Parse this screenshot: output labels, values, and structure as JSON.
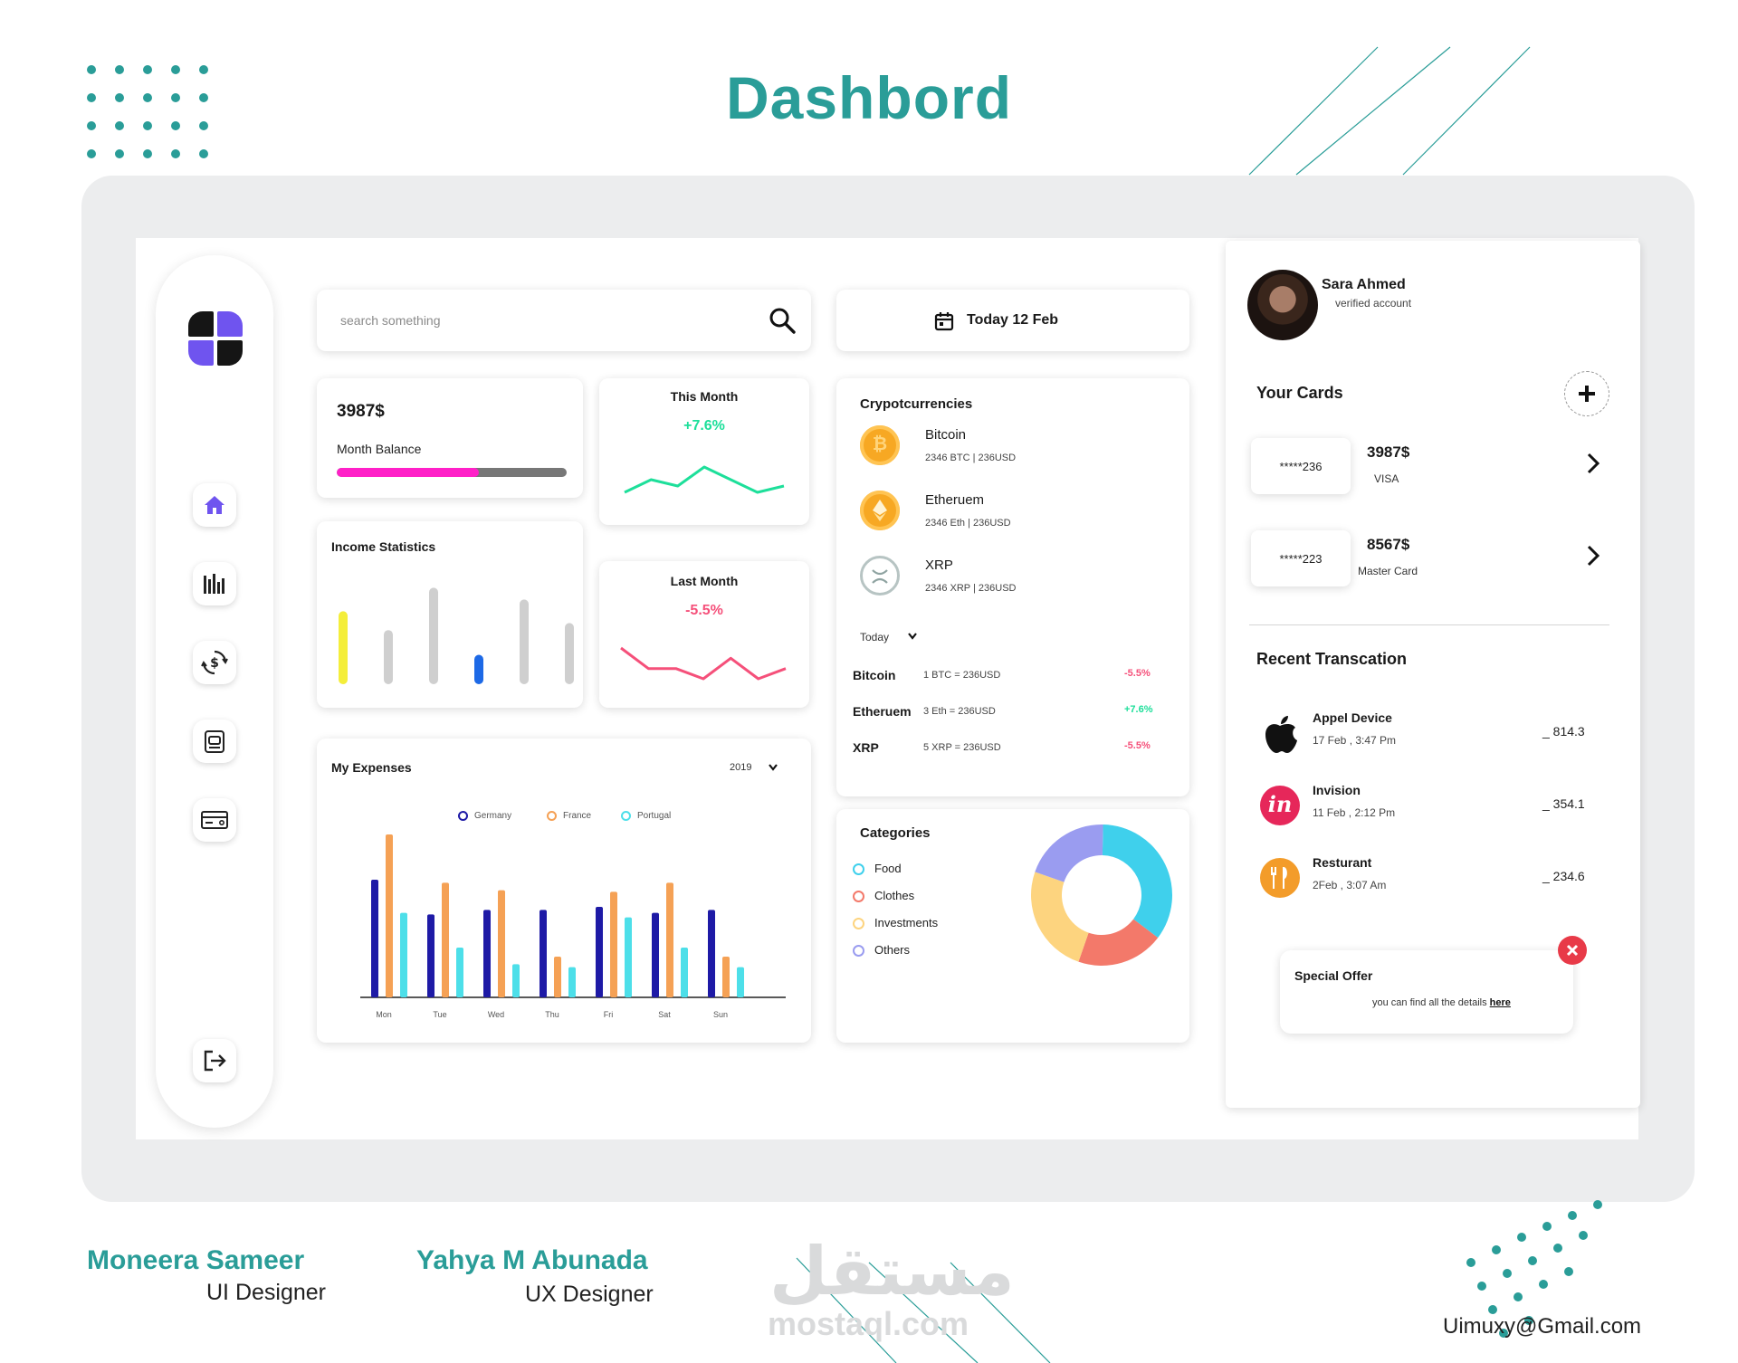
{
  "page": {
    "title": "Dashbord"
  },
  "search": {
    "placeholder": "search something"
  },
  "date_card": {
    "label": "Today 12 Feb"
  },
  "balance": {
    "amount": "3987$",
    "label": "Month Balance",
    "progress_fraction": 0.62
  },
  "this_month": {
    "title": "This Month",
    "change": "+7.6%",
    "color": "#1ddf9a",
    "trend": [
      3,
      5,
      4,
      7,
      5,
      3,
      4
    ]
  },
  "last_month": {
    "title": "Last Month",
    "change": "-5.5%",
    "color": "#f5507a",
    "trend": [
      6,
      4,
      4,
      3,
      5,
      3,
      4
    ]
  },
  "income": {
    "title": "Income Statistics",
    "bars": [
      {
        "value": 0.62,
        "color": "#f4ee3a"
      },
      {
        "value": 0.46,
        "color": "#cfcfcf"
      },
      {
        "value": 0.82,
        "color": "#cfcfcf"
      },
      {
        "value": 0.25,
        "color": "#1d69e6"
      },
      {
        "value": 0.72,
        "color": "#cfcfcf"
      },
      {
        "value": 0.52,
        "color": "#cfcfcf"
      }
    ]
  },
  "expenses": {
    "title": "My Expenses",
    "year": "2019",
    "legend": [
      {
        "name": "Germany",
        "color": "#1e1aa6"
      },
      {
        "name": "France",
        "color": "#f5a155"
      },
      {
        "name": "Portugal",
        "color": "#4ddfe9"
      }
    ]
  },
  "chart_data": {
    "type": "bar",
    "categories": [
      "Mon",
      "Tue",
      "Wed",
      "Thu",
      "Fri",
      "Sat",
      "Sun"
    ],
    "series": [
      {
        "name": "Germany",
        "values": [
          78,
          55,
          58,
          58,
          60,
          56,
          58
        ]
      },
      {
        "name": "France",
        "values": [
          108,
          76,
          71,
          27,
          70,
          76,
          27
        ]
      },
      {
        "name": "Portugal",
        "values": [
          56,
          33,
          22,
          20,
          53,
          33,
          20
        ]
      }
    ],
    "ylim": [
      0,
      120
    ],
    "legend_position": "top-center",
    "grid": false
  },
  "crypto": {
    "title": "Crypotcurrencies",
    "items": [
      {
        "name": "Bitcoin",
        "detail": "2346 BTC | 236USD",
        "color": "#f7a823"
      },
      {
        "name": "Etheruem",
        "detail": "2346 Eth  | 236USD",
        "color": "#f7a823"
      },
      {
        "name": "XRP",
        "detail": "2346 XRP | 236USD",
        "color": "#b7c4c3"
      }
    ],
    "filter": "Today",
    "rates": [
      {
        "name": "Bitcoin",
        "rate": "1 BTC  =  236USD",
        "change": "-5.5%",
        "color": "#f5507a"
      },
      {
        "name": "Etheruem",
        "rate": "3 Eth  =  236USD",
        "change": "+7.6%",
        "color": "#1ddf9a"
      },
      {
        "name": "XRP",
        "rate": "5 XRP  =  236USD",
        "change": "-5.5%",
        "color": "#f5507a"
      }
    ]
  },
  "categories": {
    "title": "Categories",
    "items": [
      {
        "name": "Food",
        "color": "#3fd0ec",
        "share": 0.35
      },
      {
        "name": "Clothes",
        "color": "#f3796a",
        "share": 0.2
      },
      {
        "name": "Investments",
        "color": "#fdd47f",
        "share": 0.25
      },
      {
        "name": "Others",
        "color": "#9a9cf0",
        "share": 0.2
      }
    ]
  },
  "profile": {
    "name": "Sara Ahmed",
    "status": "verified account"
  },
  "cards": {
    "title": "Your Cards",
    "items": [
      {
        "number": "*****236",
        "amount": "3987$",
        "type": "VISA"
      },
      {
        "number": "*****223",
        "amount": "8567$",
        "type": "Master Card"
      }
    ]
  },
  "transactions": {
    "title": "Recent Transcation",
    "items": [
      {
        "name": "Appel Device",
        "date": "17 Feb , 3:47 Pm",
        "amount": "_ 814.3",
        "icon": "apple-icon"
      },
      {
        "name": "Invision",
        "date": "11 Feb , 2:12 Pm",
        "amount": "_ 354.1",
        "icon": "invision-icon"
      },
      {
        "name": "Resturant",
        "date": "2Feb , 3:07 Am",
        "amount": "_ 234.6",
        "icon": "restaurant-icon"
      }
    ]
  },
  "offer": {
    "title": "Special Offer",
    "text": "you can find all the details",
    "link": "here"
  },
  "footer": {
    "person1": {
      "name": "Moneera Sameer",
      "role": "UI Designer"
    },
    "person2": {
      "name": "Yahya M Abunada",
      "role": "UX Designer"
    },
    "email": "Uimuxy@Gmail.com",
    "watermark_arabic": "مستقل",
    "watermark_latin": "mostaql.com"
  }
}
